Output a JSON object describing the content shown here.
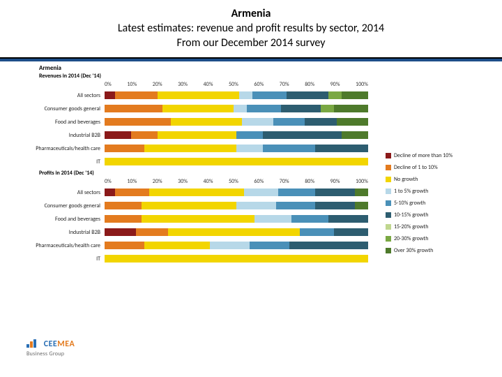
{
  "title": {
    "country": "Armenia",
    "line2": "Latest estimates: revenue and profit results by sector, 2014",
    "line3": "From our December 2014 survey"
  },
  "chart_country_label": "Armenia",
  "axis_ticks": [
    "0%",
    "10%",
    "20%",
    "30%",
    "40%",
    "50%",
    "60%",
    "70%",
    "80%",
    "90%",
    "100%"
  ],
  "legend": [
    {
      "label": "Decline of more than 10%",
      "color": "#8b1a1a"
    },
    {
      "label": "Decline of 1 to 10%",
      "color": "#e37b1f"
    },
    {
      "label": "No growth",
      "color": "#f2d500"
    },
    {
      "label": "1 to 5% growth",
      "color": "#b7d8e8"
    },
    {
      "label": "5-10% growth",
      "color": "#4a90b8"
    },
    {
      "label": "10-15% growth",
      "color": "#2d5d70"
    },
    {
      "label": "15-20% growth",
      "color": "#c0d78f"
    },
    {
      "label": "20-30% growth",
      "color": "#7aa843"
    },
    {
      "label": "Over 30% growth",
      "color": "#4e7a2b"
    }
  ],
  "sections": [
    {
      "heading": "Revenues in 2014 (Dec '14)",
      "rows": [
        {
          "label": "All sectors",
          "segments": [
            {
              "v": 4,
              "c": "#8b1a1a"
            },
            {
              "v": 16,
              "c": "#e37b1f"
            },
            {
              "v": 31,
              "c": "#f2d500"
            },
            {
              "v": 5,
              "c": "#b7d8e8"
            },
            {
              "v": 13,
              "c": "#4a90b8"
            },
            {
              "v": 16,
              "c": "#2d5d70"
            },
            {
              "v": 0,
              "c": "#c0d78f"
            },
            {
              "v": 5,
              "c": "#7aa843"
            },
            {
              "v": 10,
              "c": "#4e7a2b"
            }
          ]
        },
        {
          "label": "Consumer goods general",
          "segments": [
            {
              "v": 0,
              "c": "#8b1a1a"
            },
            {
              "v": 22,
              "c": "#e37b1f"
            },
            {
              "v": 27,
              "c": "#f2d500"
            },
            {
              "v": 5,
              "c": "#b7d8e8"
            },
            {
              "v": 13,
              "c": "#4a90b8"
            },
            {
              "v": 15,
              "c": "#2d5d70"
            },
            {
              "v": 0,
              "c": "#c0d78f"
            },
            {
              "v": 5,
              "c": "#7aa843"
            },
            {
              "v": 13,
              "c": "#4e7a2b"
            }
          ]
        },
        {
          "label": "Food and beverages",
          "segments": [
            {
              "v": 0,
              "c": "#8b1a1a"
            },
            {
              "v": 25,
              "c": "#e37b1f"
            },
            {
              "v": 27,
              "c": "#f2d500"
            },
            {
              "v": 12,
              "c": "#b7d8e8"
            },
            {
              "v": 12,
              "c": "#4a90b8"
            },
            {
              "v": 12,
              "c": "#2d5d70"
            },
            {
              "v": 0,
              "c": "#c0d78f"
            },
            {
              "v": 0,
              "c": "#7aa843"
            },
            {
              "v": 12,
              "c": "#4e7a2b"
            }
          ]
        },
        {
          "label": "Industrial B2B",
          "segments": [
            {
              "v": 10,
              "c": "#8b1a1a"
            },
            {
              "v": 10,
              "c": "#e37b1f"
            },
            {
              "v": 30,
              "c": "#f2d500"
            },
            {
              "v": 0,
              "c": "#b7d8e8"
            },
            {
              "v": 10,
              "c": "#4a90b8"
            },
            {
              "v": 30,
              "c": "#2d5d70"
            },
            {
              "v": 0,
              "c": "#c0d78f"
            },
            {
              "v": 0,
              "c": "#7aa843"
            },
            {
              "v": 10,
              "c": "#4e7a2b"
            }
          ]
        },
        {
          "label": "Pharmaceuticals/health care",
          "segments": [
            {
              "v": 0,
              "c": "#8b1a1a"
            },
            {
              "v": 15,
              "c": "#e37b1f"
            },
            {
              "v": 35,
              "c": "#f2d500"
            },
            {
              "v": 10,
              "c": "#b7d8e8"
            },
            {
              "v": 20,
              "c": "#4a90b8"
            },
            {
              "v": 20,
              "c": "#2d5d70"
            },
            {
              "v": 0,
              "c": "#c0d78f"
            },
            {
              "v": 0,
              "c": "#7aa843"
            },
            {
              "v": 0,
              "c": "#4e7a2b"
            }
          ]
        },
        {
          "label": "IT",
          "segments": [
            {
              "v": 0,
              "c": "#8b1a1a"
            },
            {
              "v": 0,
              "c": "#e37b1f"
            },
            {
              "v": 100,
              "c": "#f2d500"
            },
            {
              "v": 0,
              "c": "#b7d8e8"
            },
            {
              "v": 0,
              "c": "#4a90b8"
            },
            {
              "v": 0,
              "c": "#2d5d70"
            },
            {
              "v": 0,
              "c": "#c0d78f"
            },
            {
              "v": 0,
              "c": "#7aa843"
            },
            {
              "v": 0,
              "c": "#4e7a2b"
            }
          ]
        }
      ]
    },
    {
      "heading": "Profits in 2014 (Dec '14)",
      "rows": [
        {
          "label": "All sectors",
          "segments": [
            {
              "v": 4,
              "c": "#8b1a1a"
            },
            {
              "v": 13,
              "c": "#e37b1f"
            },
            {
              "v": 36,
              "c": "#f2d500"
            },
            {
              "v": 13,
              "c": "#b7d8e8"
            },
            {
              "v": 14,
              "c": "#4a90b8"
            },
            {
              "v": 15,
              "c": "#2d5d70"
            },
            {
              "v": 0,
              "c": "#c0d78f"
            },
            {
              "v": 0,
              "c": "#7aa843"
            },
            {
              "v": 5,
              "c": "#4e7a2b"
            }
          ]
        },
        {
          "label": "Consumer goods general",
          "segments": [
            {
              "v": 0,
              "c": "#8b1a1a"
            },
            {
              "v": 14,
              "c": "#e37b1f"
            },
            {
              "v": 36,
              "c": "#f2d500"
            },
            {
              "v": 15,
              "c": "#b7d8e8"
            },
            {
              "v": 15,
              "c": "#4a90b8"
            },
            {
              "v": 15,
              "c": "#2d5d70"
            },
            {
              "v": 0,
              "c": "#c0d78f"
            },
            {
              "v": 0,
              "c": "#7aa843"
            },
            {
              "v": 5,
              "c": "#4e7a2b"
            }
          ]
        },
        {
          "label": "Food and beverages",
          "segments": [
            {
              "v": 0,
              "c": "#8b1a1a"
            },
            {
              "v": 14,
              "c": "#e37b1f"
            },
            {
              "v": 43,
              "c": "#f2d500"
            },
            {
              "v": 14,
              "c": "#b7d8e8"
            },
            {
              "v": 14,
              "c": "#4a90b8"
            },
            {
              "v": 15,
              "c": "#2d5d70"
            },
            {
              "v": 0,
              "c": "#c0d78f"
            },
            {
              "v": 0,
              "c": "#7aa843"
            },
            {
              "v": 0,
              "c": "#4e7a2b"
            }
          ]
        },
        {
          "label": "Industrial B2B",
          "segments": [
            {
              "v": 12,
              "c": "#8b1a1a"
            },
            {
              "v": 12,
              "c": "#e37b1f"
            },
            {
              "v": 50,
              "c": "#f2d500"
            },
            {
              "v": 0,
              "c": "#b7d8e8"
            },
            {
              "v": 13,
              "c": "#4a90b8"
            },
            {
              "v": 13,
              "c": "#2d5d70"
            },
            {
              "v": 0,
              "c": "#c0d78f"
            },
            {
              "v": 0,
              "c": "#7aa843"
            },
            {
              "v": 0,
              "c": "#4e7a2b"
            }
          ]
        },
        {
          "label": "Pharmaceuticals/health care",
          "segments": [
            {
              "v": 0,
              "c": "#8b1a1a"
            },
            {
              "v": 15,
              "c": "#e37b1f"
            },
            {
              "v": 25,
              "c": "#f2d500"
            },
            {
              "v": 15,
              "c": "#b7d8e8"
            },
            {
              "v": 15,
              "c": "#4a90b8"
            },
            {
              "v": 30,
              "c": "#2d5d70"
            },
            {
              "v": 0,
              "c": "#c0d78f"
            },
            {
              "v": 0,
              "c": "#7aa843"
            },
            {
              "v": 0,
              "c": "#4e7a2b"
            }
          ]
        },
        {
          "label": "IT",
          "segments": [
            {
              "v": 0,
              "c": "#8b1a1a"
            },
            {
              "v": 0,
              "c": "#e37b1f"
            },
            {
              "v": 100,
              "c": "#f2d500"
            },
            {
              "v": 0,
              "c": "#b7d8e8"
            },
            {
              "v": 0,
              "c": "#4a90b8"
            },
            {
              "v": 0,
              "c": "#2d5d70"
            },
            {
              "v": 0,
              "c": "#c0d78f"
            },
            {
              "v": 0,
              "c": "#7aa843"
            },
            {
              "v": 0,
              "c": "#4e7a2b"
            }
          ]
        }
      ]
    }
  ],
  "logo": {
    "cee": "CEE",
    "mea": "MEA",
    "sub": "Business Group"
  }
}
